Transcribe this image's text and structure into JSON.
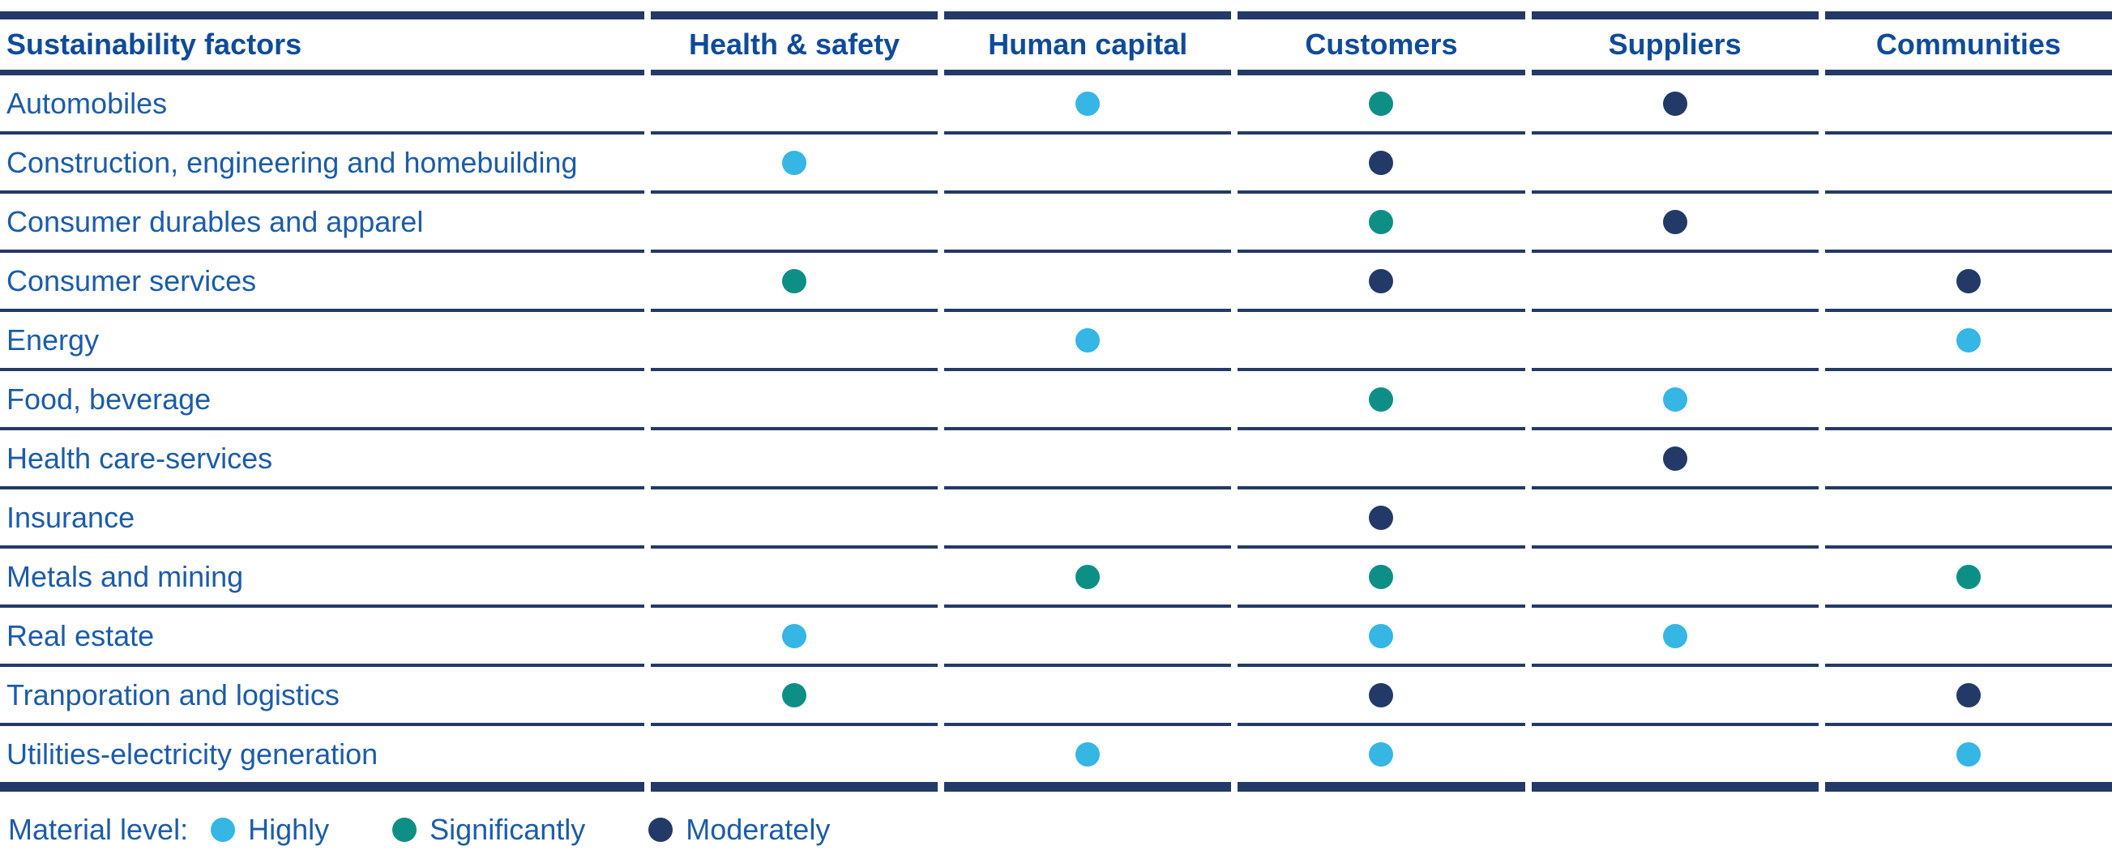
{
  "table": {
    "columns": [
      {
        "key": "factor",
        "label": "Sustainability factors"
      },
      {
        "key": "health_safety",
        "label": "Health & safety"
      },
      {
        "key": "human_capital",
        "label": "Human capital"
      },
      {
        "key": "customers",
        "label": "Customers"
      },
      {
        "key": "suppliers",
        "label": "Suppliers"
      },
      {
        "key": "communities",
        "label": "Communities"
      }
    ],
    "rows": [
      {
        "factor": "Automobiles",
        "health_safety": null,
        "human_capital": "highly",
        "customers": "significantly",
        "suppliers": "moderately",
        "communities": null
      },
      {
        "factor": "Construction, engineering and homebuilding",
        "health_safety": "highly",
        "human_capital": null,
        "customers": "moderately",
        "suppliers": null,
        "communities": null
      },
      {
        "factor": "Consumer durables and apparel",
        "health_safety": null,
        "human_capital": null,
        "customers": "significantly",
        "suppliers": "moderately",
        "communities": null
      },
      {
        "factor": "Consumer services",
        "health_safety": "significantly",
        "human_capital": null,
        "customers": "moderately",
        "suppliers": null,
        "communities": "moderately"
      },
      {
        "factor": "Energy",
        "health_safety": null,
        "human_capital": "highly",
        "customers": null,
        "suppliers": null,
        "communities": "highly"
      },
      {
        "factor": "Food, beverage",
        "health_safety": null,
        "human_capital": null,
        "customers": "significantly",
        "suppliers": "highly",
        "communities": null
      },
      {
        "factor": "Health care-services",
        "health_safety": null,
        "human_capital": null,
        "customers": null,
        "suppliers": "moderately",
        "communities": null
      },
      {
        "factor": "Insurance",
        "health_safety": null,
        "human_capital": null,
        "customers": "moderately",
        "suppliers": null,
        "communities": null
      },
      {
        "factor": "Metals and mining",
        "health_safety": null,
        "human_capital": "significantly",
        "customers": "significantly",
        "suppliers": null,
        "communities": "significantly"
      },
      {
        "factor": "Real estate",
        "health_safety": "highly",
        "human_capital": null,
        "customers": "highly",
        "suppliers": "highly",
        "communities": null
      },
      {
        "factor": "Tranporation and logistics",
        "health_safety": "significantly",
        "human_capital": null,
        "customers": "moderately",
        "suppliers": null,
        "communities": "moderately"
      },
      {
        "factor": "Utilities-electricity generation",
        "health_safety": null,
        "human_capital": "highly",
        "customers": "highly",
        "suppliers": null,
        "communities": "highly"
      }
    ]
  },
  "legend": {
    "title": "Material level:",
    "items": [
      {
        "level": "highly",
        "label": "Highly",
        "color": "#35b6e4"
      },
      {
        "level": "significantly",
        "label": "Significantly",
        "color": "#0e8f85"
      },
      {
        "level": "moderately",
        "label": "Moderately",
        "color": "#233a68"
      }
    ]
  },
  "colors": {
    "border": "#233a68",
    "header_text": "#0f4b99",
    "row_text": "#1c5ca8",
    "highly": "#35b6e4",
    "significantly": "#0e8f85",
    "moderately": "#233a68"
  },
  "chart_data": {
    "type": "table",
    "title": "Sustainability factors materiality by sector",
    "columns": [
      "Sustainability factors",
      "Health & safety",
      "Human capital",
      "Customers",
      "Suppliers",
      "Communities"
    ],
    "rows": [
      [
        "Automobiles",
        null,
        "highly",
        "significantly",
        "moderately",
        null
      ],
      [
        "Construction, engineering and homebuilding",
        "highly",
        null,
        "moderately",
        null,
        null
      ],
      [
        "Consumer durables and apparel",
        null,
        null,
        "significantly",
        "moderately",
        null
      ],
      [
        "Consumer services",
        "significantly",
        null,
        "moderately",
        null,
        "moderately"
      ],
      [
        "Energy",
        null,
        "highly",
        null,
        null,
        "highly"
      ],
      [
        "Food, beverage",
        null,
        null,
        "significantly",
        "highly",
        null
      ],
      [
        "Health care-services",
        null,
        null,
        null,
        "moderately",
        null
      ],
      [
        "Insurance",
        null,
        null,
        "moderately",
        null,
        null
      ],
      [
        "Metals and mining",
        null,
        "significantly",
        "significantly",
        null,
        "significantly"
      ],
      [
        "Real estate",
        "highly",
        null,
        "highly",
        "highly",
        null
      ],
      [
        "Tranporation and logistics",
        "significantly",
        null,
        "moderately",
        null,
        "moderately"
      ],
      [
        "Utilities-electricity generation",
        null,
        "highly",
        "highly",
        null,
        "highly"
      ]
    ],
    "legend": {
      "Material level": {
        "highly": "Highly",
        "significantly": "Significantly",
        "moderately": "Moderately"
      }
    },
    "legend_position": "bottom-left"
  }
}
